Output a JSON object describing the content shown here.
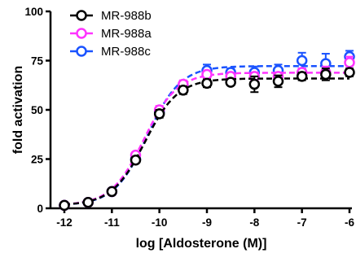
{
  "chart_data": {
    "type": "scatter",
    "title": "",
    "xlabel": "log [Aldosterone (M)]",
    "ylabel": "fold activation",
    "xlim": [
      -12,
      -6
    ],
    "ylim": [
      0,
      100
    ],
    "xticks": [
      "-12",
      "-11",
      "-10",
      "-9",
      "-8",
      "-7",
      "-6"
    ],
    "yticks": [
      "0",
      "25",
      "50",
      "75",
      "100"
    ],
    "grid": false,
    "legend": "top-left",
    "x": [
      -12,
      -11.5,
      -11,
      -10.5,
      -10,
      -9.5,
      -9,
      -8.5,
      -8,
      -7.5,
      -7,
      -6.5,
      -6
    ],
    "series": [
      {
        "name": "MR-988b",
        "color": "#000000",
        "y": [
          1.5,
          3,
          8.5,
          24.5,
          48,
          60,
          63.5,
          64,
          63,
          64.5,
          67,
          68,
          69
        ],
        "err": [
          0.5,
          0.7,
          1,
          1.5,
          2,
          2,
          2,
          1.5,
          4,
          3,
          2,
          3,
          2
        ]
      },
      {
        "name": "MR-988a",
        "color": "#ff33ff",
        "y": [
          1.5,
          3,
          8.5,
          27,
          50,
          63,
          68,
          67,
          67,
          67,
          69,
          69,
          74
        ],
        "err": [
          0.5,
          0.7,
          1,
          1.5,
          2,
          2,
          2,
          2,
          2,
          2,
          2,
          3,
          3
        ]
      },
      {
        "name": "MR-988c",
        "color": "#1a53ff",
        "y": [
          1.5,
          3,
          8.5,
          25,
          49,
          62.5,
          70,
          69,
          69,
          70,
          75,
          73.5,
          77
        ],
        "err": [
          0.5,
          0.7,
          1,
          1.5,
          2,
          2,
          3,
          2,
          3,
          3,
          4,
          5,
          3
        ]
      }
    ]
  }
}
